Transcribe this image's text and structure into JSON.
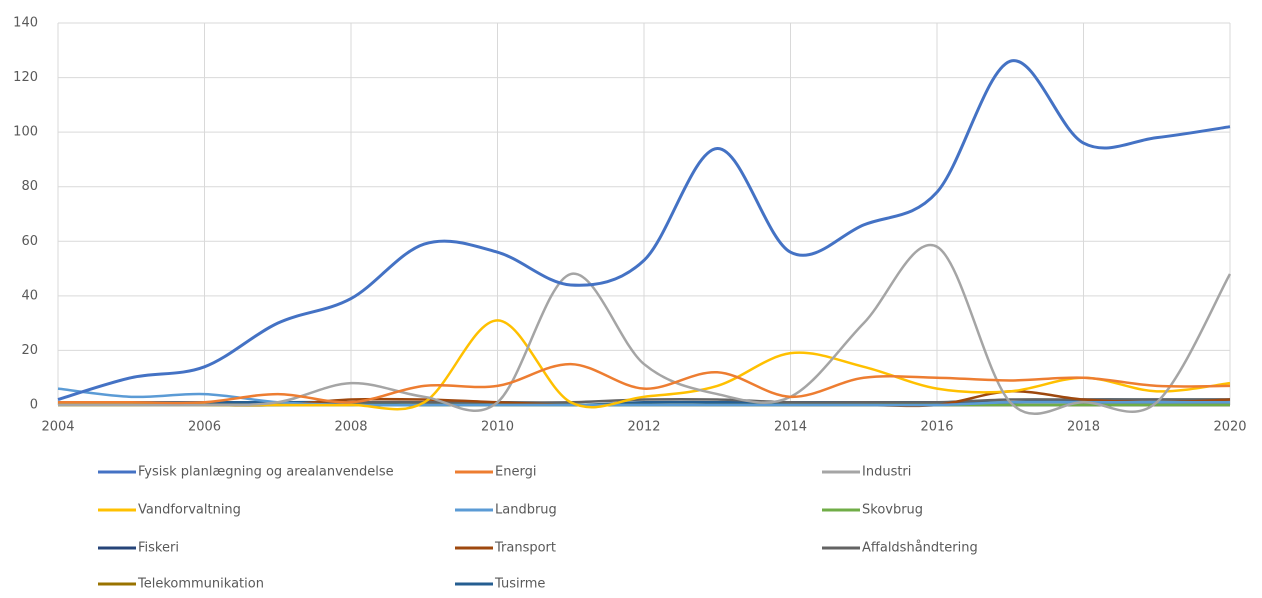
{
  "chart_data": {
    "type": "line",
    "x": [
      2004,
      2005,
      2006,
      2007,
      2008,
      2009,
      2010,
      2011,
      2012,
      2013,
      2014,
      2015,
      2016,
      2017,
      2018,
      2019,
      2020
    ],
    "xlim": [
      2004,
      2020
    ],
    "xticks": [
      2004,
      2006,
      2008,
      2010,
      2012,
      2014,
      2016,
      2018,
      2020
    ],
    "ylim": [
      0,
      140
    ],
    "yticks": [
      0,
      20,
      40,
      60,
      80,
      100,
      120,
      140
    ],
    "grid": true,
    "smooth": true,
    "legend": "bottom",
    "series": [
      {
        "name": "Fysisk planlægning og arealanvendelse",
        "color": "#4472c4",
        "values": [
          2,
          10,
          14,
          30,
          39,
          59,
          56,
          44,
          53,
          94,
          56,
          66,
          78,
          126,
          96,
          98,
          102
        ]
      },
      {
        "name": "Energi",
        "color": "#ed7d31",
        "values": [
          1,
          1,
          1,
          4,
          1,
          7,
          7,
          15,
          6,
          12,
          3,
          10,
          10,
          9,
          10,
          7,
          7
        ]
      },
      {
        "name": "Industri",
        "color": "#a5a5a5",
        "values": [
          0,
          0,
          0,
          1,
          8,
          3,
          1,
          48,
          15,
          4,
          3,
          30,
          58,
          1,
          1,
          1,
          48
        ]
      },
      {
        "name": "Vandforvaltning",
        "color": "#ffc000",
        "values": [
          0,
          0,
          0,
          0,
          0,
          1,
          31,
          1,
          3,
          7,
          19,
          14,
          6,
          5,
          10,
          5,
          8
        ]
      },
      {
        "name": "Landbrug",
        "color": "#5b9bd5",
        "values": [
          6,
          3,
          4,
          1,
          0,
          0,
          0,
          0,
          0,
          0,
          0,
          0,
          0,
          1,
          1,
          1,
          1
        ]
      },
      {
        "name": "Skovbrug",
        "color": "#70ad47",
        "values": [
          0,
          0,
          0,
          0,
          0,
          0,
          0,
          0,
          0,
          0,
          0,
          0,
          0,
          0,
          0,
          0,
          0
        ]
      },
      {
        "name": "Fiskeri",
        "color": "#264478",
        "values": [
          0,
          0,
          0,
          0,
          0,
          0,
          0,
          0,
          0,
          0,
          0,
          0,
          0,
          0,
          0,
          0,
          0
        ]
      },
      {
        "name": "Transport",
        "color": "#9e480e",
        "values": [
          0,
          0,
          0,
          0,
          2,
          2,
          1,
          0,
          0,
          0,
          0,
          0,
          0,
          5,
          2,
          1,
          2
        ]
      },
      {
        "name": "Affaldshåndtering",
        "color": "#636363",
        "values": [
          0,
          0,
          0,
          0,
          1,
          1,
          1,
          1,
          2,
          2,
          1,
          1,
          1,
          2,
          2,
          2,
          2
        ]
      },
      {
        "name": "Telekommunikation",
        "color": "#997300",
        "values": [
          0,
          0,
          0,
          0,
          0,
          0,
          0,
          0,
          0,
          0,
          0,
          0,
          0,
          0,
          0,
          0,
          0
        ]
      },
      {
        "name": "Tusirme",
        "color": "#255e91",
        "values": [
          1,
          1,
          1,
          1,
          1,
          0,
          1,
          0,
          1,
          1,
          1,
          1,
          1,
          1,
          2,
          2,
          2
        ]
      }
    ]
  }
}
